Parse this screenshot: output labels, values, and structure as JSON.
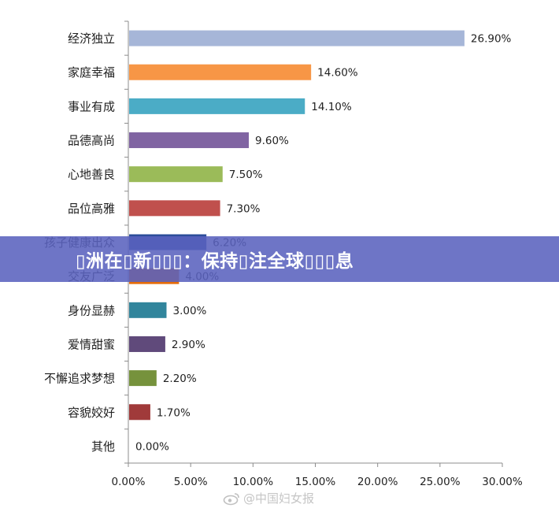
{
  "chart_data": {
    "type": "bar",
    "orientation": "horizontal",
    "categories": [
      "经济独立",
      "家庭幸福",
      "事业有成",
      "品德高尚",
      "心地善良",
      "品位高雅",
      "孩子健康出众",
      "交友广泛",
      "身份显赫",
      "爱情甜蜜",
      "不懈追求梦想",
      "容貌姣好",
      "其他"
    ],
    "values": [
      26.9,
      14.6,
      14.1,
      9.6,
      7.5,
      7.3,
      6.2,
      4.0,
      3.0,
      2.9,
      2.2,
      1.7,
      0.0
    ],
    "value_labels": [
      "26.90%",
      "14.60%",
      "14.10%",
      "9.60%",
      "7.50%",
      "7.30%",
      "6.20%",
      "4.00%",
      "3.00%",
      "2.90%",
      "2.20%",
      "1.70%",
      "0.00%"
    ],
    "colors": [
      "#a6b6d8",
      "#f79646",
      "#4bacc6",
      "#8064a2",
      "#9bbb59",
      "#c0504d",
      "#2c4d9a",
      "#e46c0a",
      "#31859c",
      "#604a7b",
      "#76923c",
      "#a03a3a",
      "#a6b6d8"
    ],
    "xlim": [
      0,
      30
    ],
    "xticks": [
      "0.00%",
      "5.00%",
      "10.00%",
      "15.00%",
      "20.00%",
      "25.00%",
      "30.00%"
    ],
    "grid": false,
    "title": "",
    "xlabel": "",
    "ylabel": ""
  },
  "banner": {
    "text": "▯洲在▯新▯▯▯：保持▯注全球▯▯▯息"
  },
  "watermark": {
    "text": "@中国妇女报",
    "icon": "weibo-icon"
  }
}
